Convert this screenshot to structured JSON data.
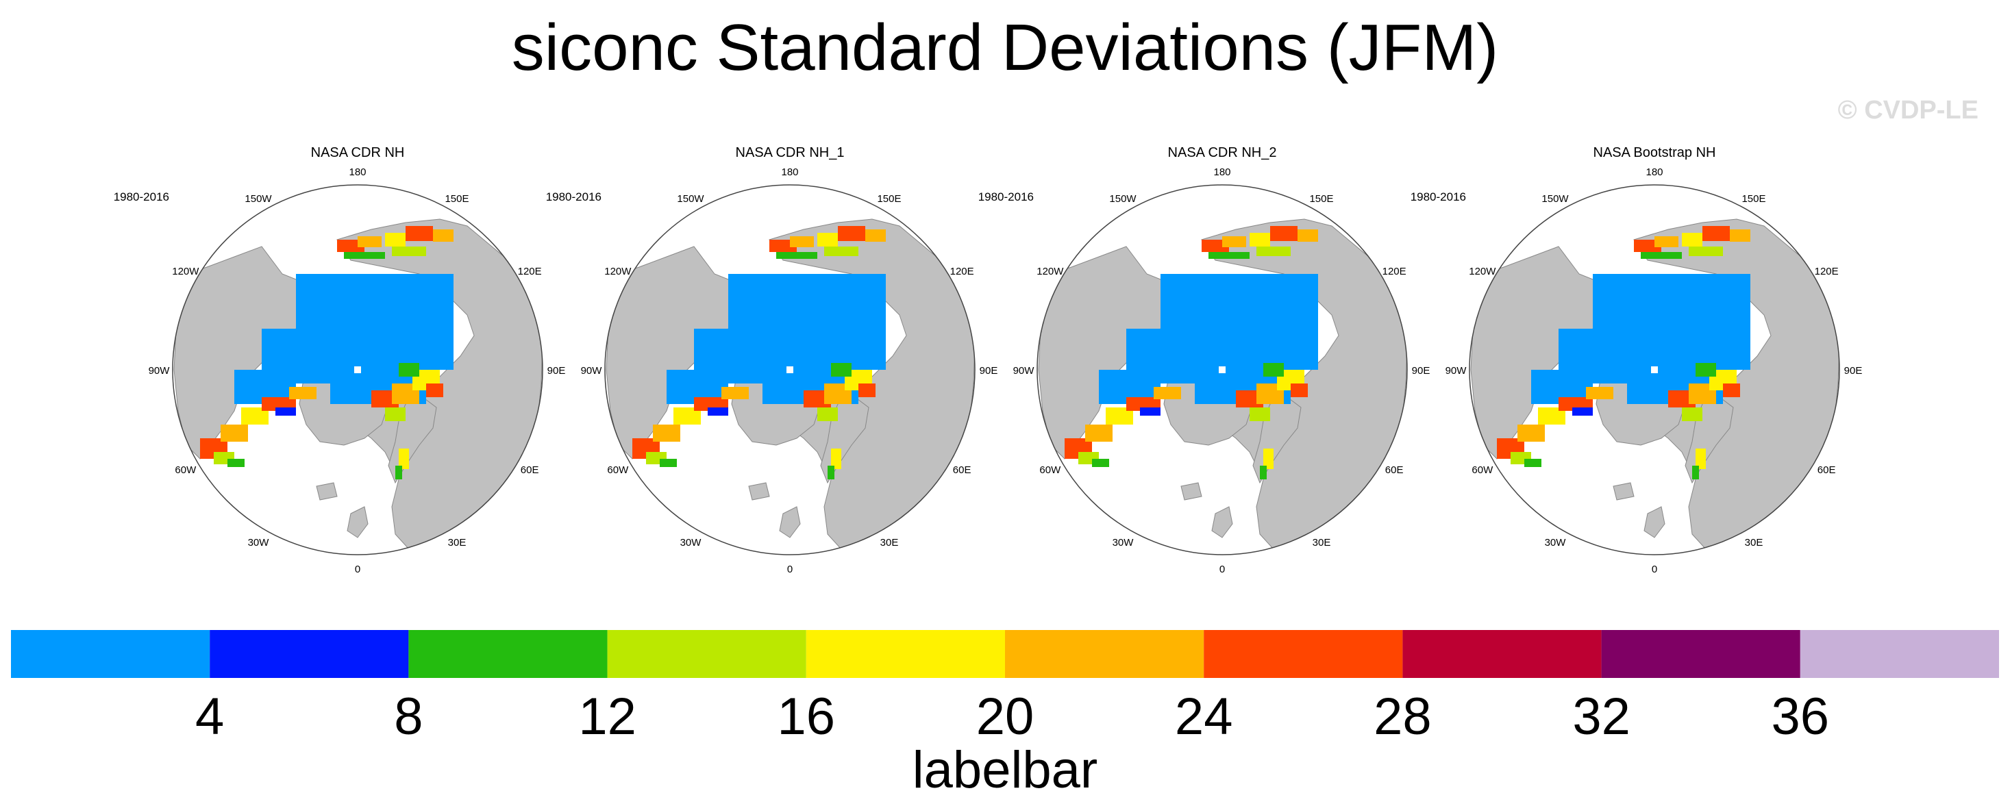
{
  "title": "siconc Standard Deviations (JFM)",
  "watermark": "© CVDP-LE",
  "panels": [
    {
      "title": "NASA CDR NH",
      "period": "1980-2016"
    },
    {
      "title": "NASA CDR NH_1",
      "period": "1980-2016"
    },
    {
      "title": "NASA CDR NH_2",
      "period": "1980-2016"
    },
    {
      "title": "NASA Bootstrap NH",
      "period": "1980-2016"
    }
  ],
  "longitude_labels": [
    "180",
    "150E",
    "120E",
    "90E",
    "60E",
    "30E",
    "0",
    "30W",
    "60W",
    "90W",
    "120W",
    "150W"
  ],
  "labelbar": {
    "title": "labelbar",
    "ticks": [
      "4",
      "8",
      "12",
      "16",
      "20",
      "24",
      "28",
      "32",
      "36"
    ],
    "colors": [
      "#0099ff",
      "#0019ff",
      "#24bc0f",
      "#bbe800",
      "#fff200",
      "#ffb400",
      "#ff4500",
      "#bd0032",
      "#7f0064",
      "#c8b0d8"
    ]
  },
  "colors": {
    "land": "#c0c0c0",
    "ocean": "#ffffff",
    "outline": "#444444"
  }
}
